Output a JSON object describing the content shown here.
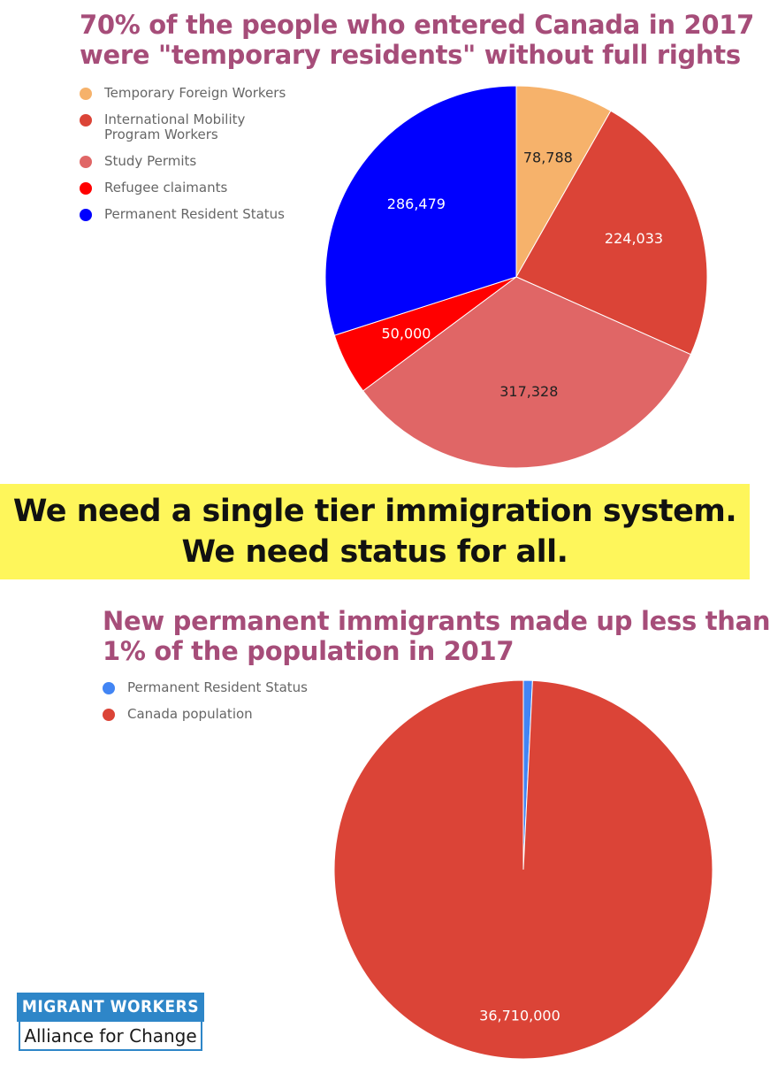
{
  "chart_data": [
    {
      "type": "pie",
      "title_lines": [
        "70% of the people who entered Canada in 2017",
        "were \"temporary residents\" without full rights"
      ],
      "legend_placement": "left",
      "categories": [
        "Temporary Foreign Workers",
        "International Mobility Program Workers",
        "Study Permits",
        "Refugee claimants",
        "Permanent Resident Status"
      ],
      "legend_lines": [
        [
          "Temporary Foreign Workers"
        ],
        [
          "International Mobility",
          "Program Workers"
        ],
        [
          "Study Permits"
        ],
        [
          "Refugee claimants"
        ],
        [
          "Permanent Resident Status"
        ]
      ],
      "values": [
        78788,
        224033,
        317328,
        50000,
        286479
      ],
      "data_labels": [
        "78,788",
        "224,033",
        "317,328",
        "50,000",
        "286,479"
      ],
      "colors": [
        "#f6b26b",
        "#db4437",
        "#e06666",
        "#ff0000",
        "#0000ff"
      ],
      "label_colors": [
        "#222222",
        "#ffffff",
        "#222222",
        "#ffffff",
        "#ffffff"
      ]
    },
    {
      "type": "pie",
      "title_lines": [
        "New permanent immigrants made up less than",
        "1% of the population in 2017"
      ],
      "legend_placement": "left",
      "categories": [
        "Permanent Resident Status",
        "Canada population"
      ],
      "legend_lines": [
        [
          "Permanent Resident Status"
        ],
        [
          "Canada population"
        ]
      ],
      "values": [
        286479,
        36710000
      ],
      "data_labels": [
        "",
        "36,710,000"
      ],
      "colors": [
        "#4285f4",
        "#db4437"
      ],
      "label_colors": [
        "#ffffff",
        "#ffffff"
      ]
    }
  ],
  "banner": {
    "line1": "We need a single tier immigration system.",
    "line2": "We need status for all."
  },
  "logo": {
    "line1": "MIGRANT WORKERS",
    "line2": "Alliance for Change"
  }
}
